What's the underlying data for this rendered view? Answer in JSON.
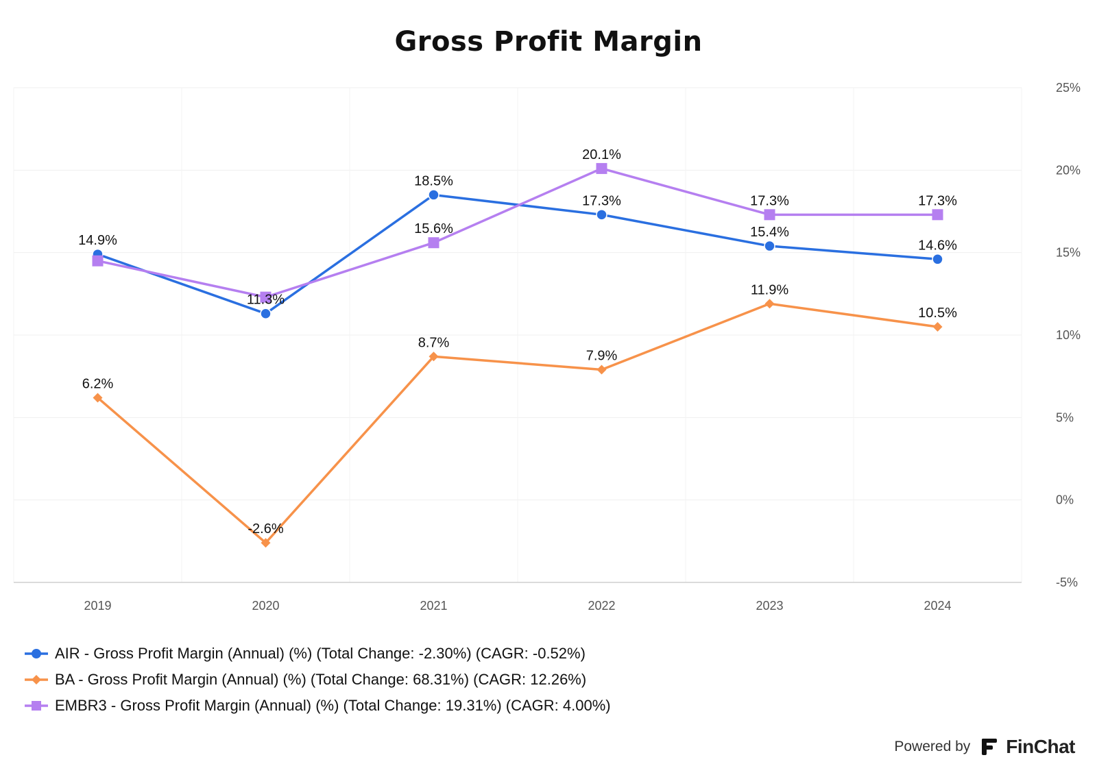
{
  "chart_data": {
    "type": "line",
    "title": "Gross Profit Margin",
    "categories": [
      "2019",
      "2020",
      "2021",
      "2022",
      "2023",
      "2024"
    ],
    "ylim": [
      -5,
      25
    ],
    "yticks": [
      -5,
      0,
      5,
      10,
      15,
      20,
      25
    ],
    "ytick_labels": [
      "-5%",
      "0%",
      "5%",
      "10%",
      "15%",
      "20%",
      "25%"
    ],
    "grid": true,
    "y_axis_side": "right",
    "legend_position": "bottom-left",
    "series": [
      {
        "name": "AIR - Gross Profit Margin (Annual) (%) (Total Change: -2.30%) (CAGR: -0.52%)",
        "values": [
          14.9,
          11.3,
          18.5,
          17.3,
          15.4,
          14.6
        ],
        "labels": [
          "14.9%",
          "11.3%",
          "18.5%",
          "17.3%",
          "15.4%",
          "14.6%"
        ],
        "color": "#2a6fe0",
        "marker": "circle"
      },
      {
        "name": "BA - Gross Profit Margin (Annual) (%) (Total Change: 68.31%) (CAGR: 12.26%)",
        "values": [
          6.2,
          -2.6,
          8.7,
          7.9,
          11.9,
          10.5
        ],
        "labels": [
          "6.2%",
          "-2.6%",
          "8.7%",
          "7.9%",
          "11.9%",
          "10.5%"
        ],
        "color": "#f7924a",
        "marker": "diamond"
      },
      {
        "name": "EMBR3 - Gross Profit Margin (Annual) (%) (Total Change: 19.31%) (CAGR: 4.00%)",
        "values": [
          14.5,
          12.3,
          15.6,
          20.1,
          17.3,
          17.3
        ],
        "labels": [
          "",
          "",
          "15.6%",
          "20.1%",
          "17.3%",
          "17.3%"
        ],
        "color": "#b57ff0",
        "marker": "square"
      }
    ]
  },
  "footer": {
    "powered_by": "Powered by",
    "brand": "FinChat"
  }
}
